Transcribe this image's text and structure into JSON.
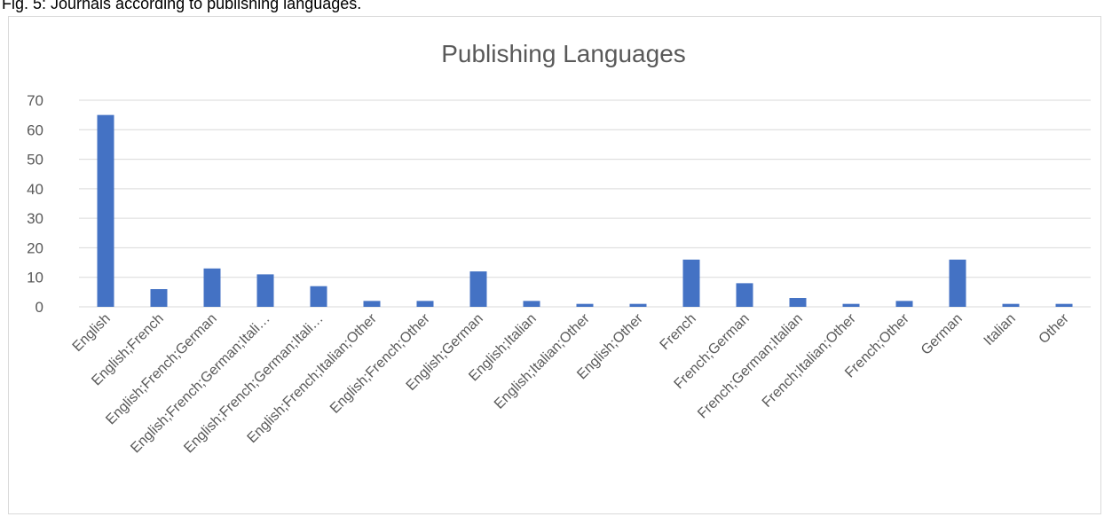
{
  "caption": "Fig. 5: Journals according to publishing languages.",
  "chart_data": {
    "type": "bar",
    "title": "Publishing Languages",
    "xlabel": "",
    "ylabel": "",
    "ylim": [
      0,
      70
    ],
    "yticks": [
      0,
      10,
      20,
      30,
      40,
      50,
      60,
      70
    ],
    "grid": true,
    "bar_color": "#4472c4",
    "categories": [
      "English",
      "English;French",
      "English;French;German",
      "English;French;German;Itali…",
      "English;French;German;Itali…",
      "English;French;Italian;Other",
      "English;French;Other",
      "English;German",
      "English;Italian",
      "English;Italian;Other",
      "English;Other",
      "French",
      "French;German",
      "French;German;Italian",
      "French;Italian;Other",
      "French;Other",
      "German",
      "Italian",
      "Other"
    ],
    "values": [
      65,
      6,
      13,
      11,
      7,
      2,
      2,
      12,
      2,
      1,
      1,
      16,
      8,
      3,
      1,
      2,
      16,
      1,
      1
    ]
  }
}
